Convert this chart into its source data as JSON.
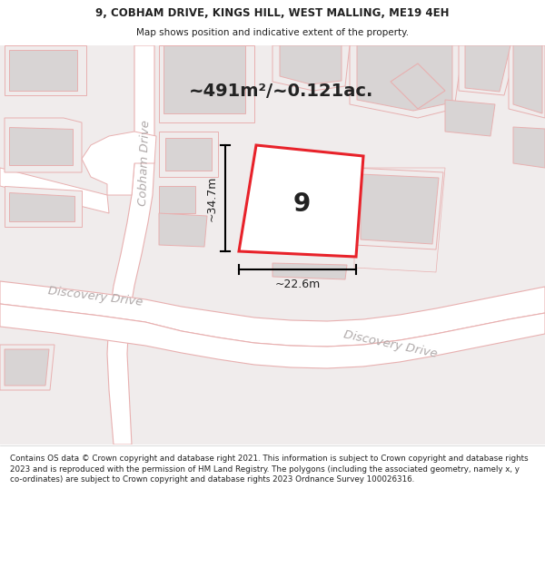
{
  "title_line1": "9, COBHAM DRIVE, KINGS HILL, WEST MALLING, ME19 4EH",
  "title_line2": "Map shows position and indicative extent of the property.",
  "area_text": "~491m²/~0.121ac.",
  "label_number": "9",
  "dim_height": "~34.7m",
  "dim_width": "~22.6m",
  "road_label_cobham": "Cobham Drive",
  "road_label_disc1": "Discovery Drive",
  "road_label_disc2": "Discovery Drive",
  "footer_text": "Contains OS data © Crown copyright and database right 2021. This information is subject to Crown copyright and database rights 2023 and is reproduced with the permission of HM Land Registry. The polygons (including the associated geometry, namely x, y co-ordinates) are subject to Crown copyright and database rights 2023 Ordnance Survey 100026316.",
  "bg_color": "#f7f4f4",
  "red_color": "#e8222a",
  "light_red": "#f0b0b0",
  "road_outline": "#e8b0b0",
  "building_fill": "#d8d4d4",
  "white": "#ffffff",
  "text_color": "#222222",
  "road_text_color": "#b0aaaa",
  "title_bg": "#ffffff",
  "footer_bg": "#ffffff",
  "map_bg": "#f0ecec"
}
